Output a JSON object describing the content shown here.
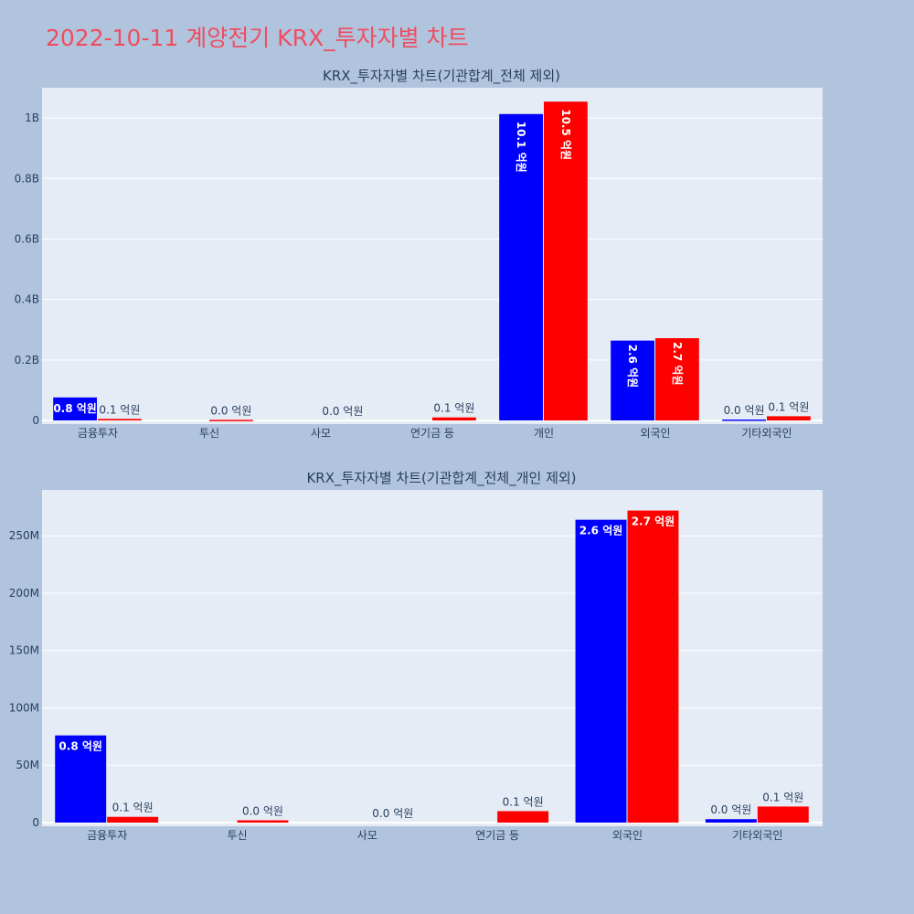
{
  "page": {
    "title": "2022-10-11 계양전기 KRX_투자자별 차트",
    "title_color": "#ef4d5f",
    "background": "#b0c4de"
  },
  "chart_data": [
    {
      "type": "bar",
      "title": "KRX_투자자별 차트(기관합계_전체 제외)",
      "categories": [
        "금융투자",
        "투신",
        "사모",
        "연기금 등",
        "개인",
        "외국인",
        "기타외국인"
      ],
      "series": [
        {
          "color": "#0000ff",
          "values": [
            76000000,
            0,
            0,
            0,
            1013000000,
            264000000,
            3000000
          ],
          "labels": [
            "0.8 억원",
            "",
            "",
            "",
            "10.1 억원",
            "2.6 억원",
            "0.0 억원"
          ]
        },
        {
          "color": "#ff0000",
          "values": [
            5000000,
            2000000,
            0,
            10000000,
            1054000000,
            272000000,
            14000000
          ],
          "labels": [
            "0.1 억원",
            "0.0 억원",
            "0.0 억원",
            "0.1 억원",
            "10.5 억원",
            "2.7 억원",
            "0.1 억원"
          ]
        }
      ],
      "ylim": [
        0,
        1100000000
      ],
      "yticks": [
        0,
        200000000,
        400000000,
        600000000,
        800000000,
        1000000000
      ],
      "ytick_labels": [
        "0",
        "0.2B",
        "0.4B",
        "0.6B",
        "0.8B",
        "1B"
      ],
      "grid": true,
      "legend": "none"
    },
    {
      "type": "bar",
      "title": "KRX_투자자별 차트(기관합계_전체_개인 제외)",
      "categories": [
        "금융투자",
        "투신",
        "사모",
        "연기금 등",
        "외국인",
        "기타외국인"
      ],
      "series": [
        {
          "color": "#0000ff",
          "values": [
            76000000,
            0,
            0,
            0,
            264000000,
            3000000
          ],
          "labels": [
            "0.8 억원",
            "",
            "",
            "",
            "2.6 억원",
            "0.0 억원"
          ]
        },
        {
          "color": "#ff0000",
          "values": [
            5000000,
            2000000,
            0,
            10000000,
            272000000,
            14000000
          ],
          "labels": [
            "0.1 억원",
            "0.0 억원",
            "0.0 억원",
            "0.1 억원",
            "2.7 억원",
            "0.1 억원"
          ]
        }
      ],
      "ylim": [
        0,
        290000000
      ],
      "yticks": [
        0,
        50000000,
        100000000,
        150000000,
        200000000,
        250000000
      ],
      "ytick_labels": [
        "0",
        "50M",
        "100M",
        "150M",
        "200M",
        "250M"
      ],
      "grid": true,
      "legend": "none"
    }
  ]
}
